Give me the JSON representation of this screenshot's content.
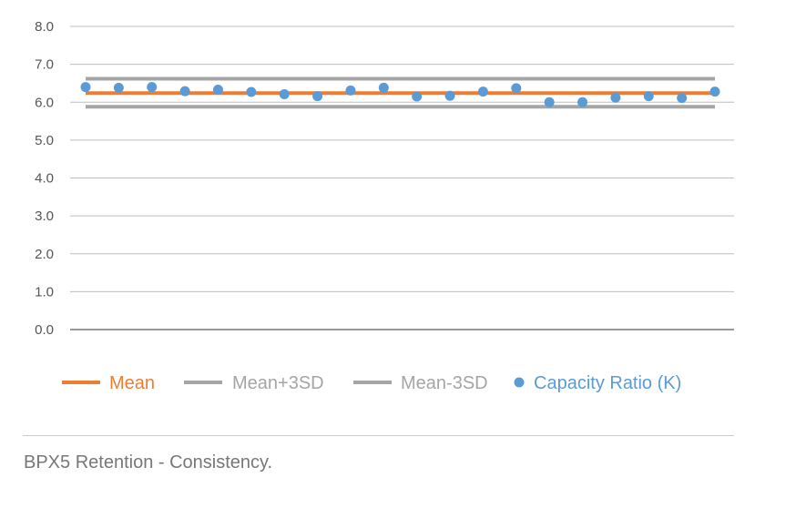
{
  "chart_data": {
    "type": "scatter",
    "ylim": [
      0,
      8
    ],
    "yticks": [
      "8.0",
      "7.0",
      "6.0",
      "5.0",
      "4.0",
      "3.0",
      "2.0",
      "1.0",
      "0.0"
    ],
    "grid": true,
    "legend_position": "bottom",
    "series": [
      {
        "name": "Mean",
        "kind": "line",
        "color": "#ED7D31",
        "values": [
          6.24,
          6.24
        ]
      },
      {
        "name": "Mean+3SD",
        "kind": "line",
        "color": "#A5A5A5",
        "values": [
          6.62,
          6.62
        ]
      },
      {
        "name": "Mean-3SD",
        "kind": "line",
        "color": "#A5A5A5",
        "values": [
          5.88,
          5.88
        ]
      },
      {
        "name": "Capacity Ratio (K)",
        "kind": "scatter",
        "color": "#5B9BD5",
        "values": [
          6.4,
          6.38,
          6.4,
          6.29,
          6.33,
          6.27,
          6.21,
          6.16,
          6.31,
          6.38,
          6.15,
          6.17,
          6.28,
          6.37,
          6.0,
          6.0,
          6.12,
          6.16,
          6.11,
          6.28
        ]
      }
    ]
  },
  "caption": "BPX5 Retention - Consistency."
}
